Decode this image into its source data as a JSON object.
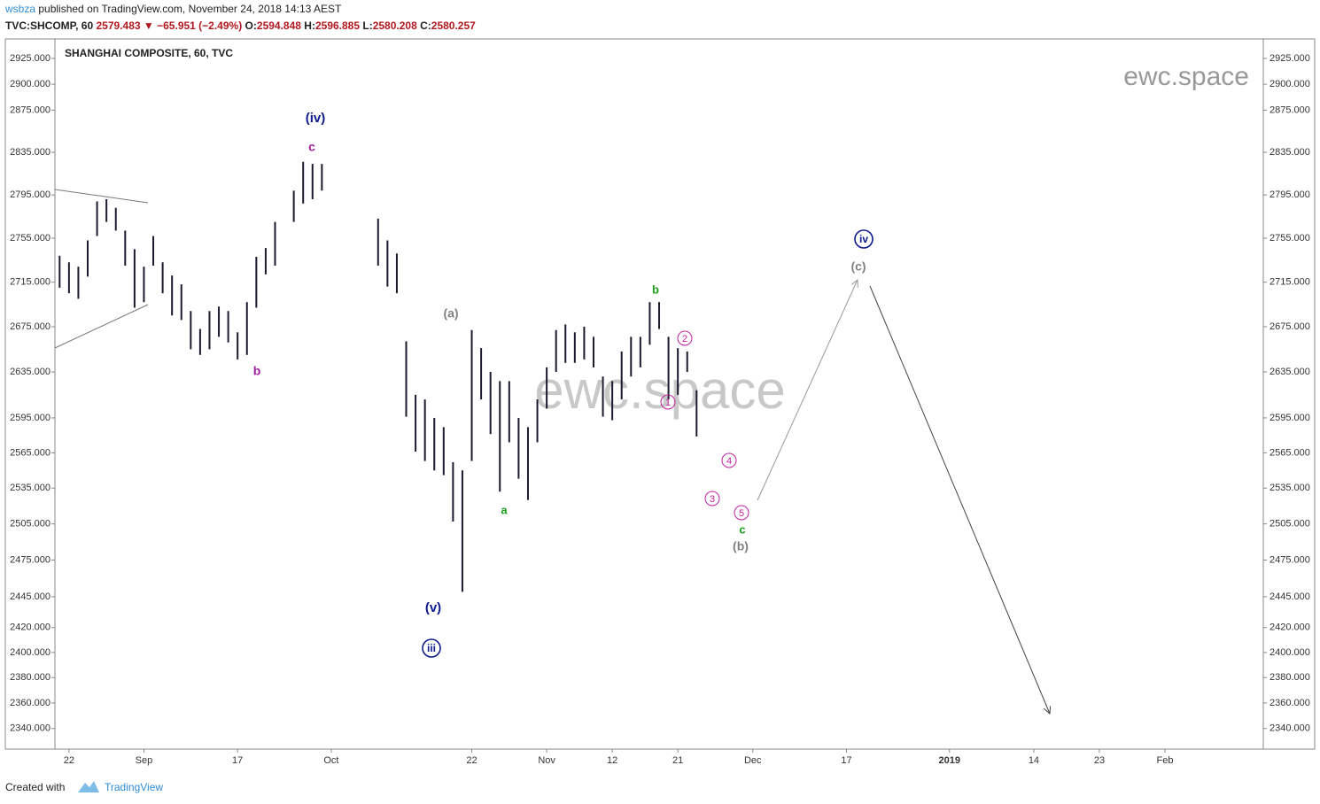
{
  "header": {
    "user": "wsbza",
    "published": "published on TradingView.com, November 24, 2018 14:13 AEST",
    "symbol": "TVC:SHCOMP, 60",
    "last": "2579.483",
    "arrow": "▼",
    "change": "−65.951 (−2.49%)",
    "ohlc": [
      {
        "label": "O:",
        "value": "2594.848"
      },
      {
        "label": "H:",
        "value": "2596.885"
      },
      {
        "label": "L:",
        "value": "2580.208"
      },
      {
        "label": "C:",
        "value": "2580.257"
      }
    ]
  },
  "footer": {
    "created": "Created with",
    "brand": "TradingView"
  },
  "chart_data": {
    "type": "ohlc",
    "title": "SHANGHAI COMPOSITE, 60, TVC",
    "watermark": "ewc.space",
    "log": true,
    "color": "#1a1a2e",
    "x": [
      "2018-08-21",
      "2018-08-22",
      "2018-08-23",
      "2018-08-24",
      "2018-08-27",
      "2018-08-28",
      "2018-08-29",
      "2018-08-30",
      "2018-08-31",
      "2018-09-03",
      "2018-09-04",
      "2018-09-05",
      "2018-09-06",
      "2018-09-07",
      "2018-09-10",
      "2018-09-11",
      "2018-09-12",
      "2018-09-13",
      "2018-09-14",
      "2018-09-17",
      "2018-09-18",
      "2018-09-19",
      "2018-09-20",
      "2018-09-21",
      "2018-09-25",
      "2018-09-26",
      "2018-09-27",
      "2018-09-28",
      "2018-10-08",
      "2018-10-09",
      "2018-10-10",
      "2018-10-11",
      "2018-10-12",
      "2018-10-15",
      "2018-10-16",
      "2018-10-17",
      "2018-10-18",
      "2018-10-19",
      "2018-10-22",
      "2018-10-23",
      "2018-10-24",
      "2018-10-25",
      "2018-10-26",
      "2018-10-29",
      "2018-10-30",
      "2018-10-31",
      "2018-11-01",
      "2018-11-02",
      "2018-11-05",
      "2018-11-06",
      "2018-11-07",
      "2018-11-08",
      "2018-11-09",
      "2018-11-12",
      "2018-11-13",
      "2018-11-14",
      "2018-11-15",
      "2018-11-16",
      "2018-11-19",
      "2018-11-20",
      "2018-11-21",
      "2018-11-22",
      "2018-11-23"
    ],
    "high": [
      2739,
      2733,
      2729,
      2753,
      2789,
      2791,
      2783,
      2762,
      2745,
      2729,
      2757,
      2733,
      2721,
      2713,
      2689,
      2673,
      2689,
      2693,
      2689,
      2670,
      2697,
      2738,
      2746,
      2770,
      2799,
      2826,
      2824,
      2824,
      2773,
      2753,
      2741,
      2662,
      2615,
      2611,
      2595,
      2587,
      2557,
      2550,
      2672,
      2656,
      2635,
      2627,
      2627,
      2595,
      2587,
      2611,
      2639,
      2672,
      2677,
      2670,
      2675,
      2666,
      2631,
      2627,
      2653,
      2666,
      2666,
      2697,
      2697,
      2666,
      2656,
      2653,
      2619
    ],
    "low": [
      2710,
      2705,
      2700,
      2720,
      2757,
      2770,
      2762,
      2730,
      2692,
      2697,
      2730,
      2705,
      2685,
      2681,
      2655,
      2650,
      2655,
      2666,
      2661,
      2646,
      2650,
      2692,
      2722,
      2730,
      2770,
      2787,
      2791,
      2799,
      2730,
      2711,
      2705,
      2596,
      2566,
      2558,
      2550,
      2546,
      2507,
      2449,
      2558,
      2611,
      2581,
      2532,
      2574,
      2543,
      2525,
      2574,
      2603,
      2635,
      2643,
      2643,
      2646,
      2639,
      2596,
      2593,
      2611,
      2631,
      2639,
      2659,
      2673,
      2611,
      2615,
      2635,
      2579
    ],
    "ylim": [
      2324,
      2944
    ],
    "yticks": [
      {
        "value": 2925,
        "label": "2925.000"
      },
      {
        "value": 2900,
        "label": "2900.000"
      },
      {
        "value": 2875,
        "label": "2875.000"
      },
      {
        "value": 2835,
        "label": "2835.000"
      },
      {
        "value": 2795,
        "label": "2795.000"
      },
      {
        "value": 2755,
        "label": "2755.000"
      },
      {
        "value": 2715,
        "label": "2715.000"
      },
      {
        "value": 2675,
        "label": "2675.000"
      },
      {
        "value": 2635,
        "label": "2635.000"
      },
      {
        "value": 2595,
        "label": "2595.000"
      },
      {
        "value": 2565,
        "label": "2565.000"
      },
      {
        "value": 2535,
        "label": "2535.000"
      },
      {
        "value": 2505,
        "label": "2505.000"
      },
      {
        "value": 2475,
        "label": "2475.000"
      },
      {
        "value": 2445,
        "label": "2445.000"
      },
      {
        "value": 2420,
        "label": "2420.000"
      },
      {
        "value": 2400,
        "label": "2400.000"
      },
      {
        "value": 2380,
        "label": "2380.000"
      },
      {
        "value": 2360,
        "label": "2360.000"
      },
      {
        "value": 2340,
        "label": "2340.000"
      }
    ],
    "xlim": [
      "2018-08-21",
      "2019-02-18"
    ],
    "xticks": [
      {
        "value": "2018-08-22",
        "label": "22"
      },
      {
        "value": "2018-09-03",
        "label": "Sep"
      },
      {
        "value": "2018-09-17",
        "label": "17"
      },
      {
        "value": "2018-10-01",
        "label": "Oct"
      },
      {
        "value": "2018-10-22",
        "label": "22"
      },
      {
        "value": "2018-11-01",
        "label": "Nov"
      },
      {
        "value": "2018-11-12",
        "label": "12"
      },
      {
        "value": "2018-11-21",
        "label": "21"
      },
      {
        "value": "2018-12-03",
        "label": "Dec"
      },
      {
        "value": "2018-12-17",
        "label": "17"
      },
      {
        "value": "2019-01-01",
        "label": "2019"
      },
      {
        "value": "2019-01-14",
        "label": "14"
      },
      {
        "value": "2019-01-23",
        "label": "23"
      },
      {
        "value": "2019-02-01",
        "label": "Feb"
      }
    ],
    "annotations": [
      {
        "text": "(iv)",
        "color": "#0d1b8c"
      },
      {
        "text": "c",
        "color": "#a020a0"
      },
      {
        "text": "b",
        "color": "#a020a0"
      },
      {
        "text": "(a)",
        "color": "#808080"
      },
      {
        "text": "(v)",
        "color": "#0d1b8c"
      },
      {
        "text": "iii",
        "color": "#0d1b8c",
        "circled": true
      },
      {
        "text": "a",
        "color": "#1a9e1a"
      },
      {
        "text": "b",
        "color": "#1a9e1a"
      },
      {
        "text": "1",
        "color": "#c020a0",
        "circled": true
      },
      {
        "text": "2",
        "color": "#c020a0",
        "circled": true
      },
      {
        "text": "3",
        "color": "#c020a0",
        "circled": true
      },
      {
        "text": "4",
        "color": "#c020a0",
        "circled": true
      },
      {
        "text": "5",
        "color": "#c020a0",
        "circled": true
      },
      {
        "text": "c",
        "color": "#1a9e1a"
      },
      {
        "text": "(b)",
        "color": "#808080"
      },
      {
        "text": "(c)",
        "color": "#808080"
      },
      {
        "text": "iv",
        "color": "#0d1b8c",
        "circled": true
      }
    ]
  }
}
